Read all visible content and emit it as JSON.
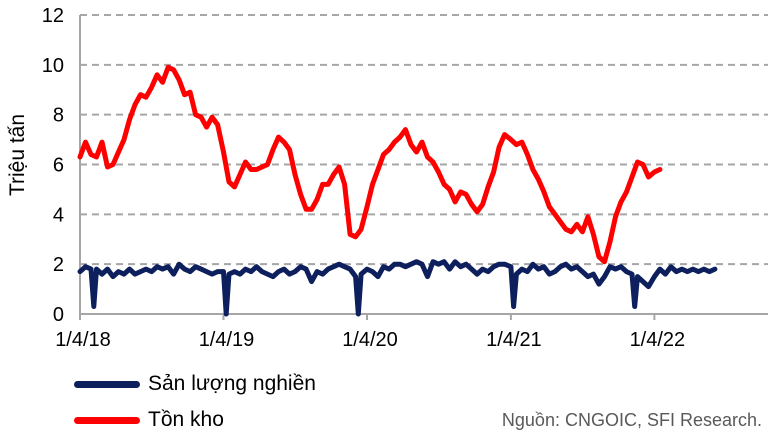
{
  "chart_data": {
    "type": "line",
    "ylabel": "Triệu tấn",
    "xlabel": "",
    "ylim": [
      0,
      12
    ],
    "yticks": [
      0,
      2,
      4,
      6,
      8,
      10,
      12
    ],
    "xticks": [
      "1/4/18",
      "1/4/19",
      "1/4/20",
      "1/4/21",
      "1/4/22"
    ],
    "x_range": [
      "2018-01-04",
      "2022-10-20"
    ],
    "grid": "horizontal dashed",
    "legend_position": "bottom-left",
    "series": [
      {
        "name": "Tồn kho",
        "color": "#ff0000",
        "points": [
          [
            "2018-01-04",
            6.3
          ],
          [
            "2018-01-18",
            6.9
          ],
          [
            "2018-02-01",
            6.4
          ],
          [
            "2018-02-15",
            6.3
          ],
          [
            "2018-03-01",
            6.9
          ],
          [
            "2018-03-15",
            5.9
          ],
          [
            "2018-03-29",
            6.0
          ],
          [
            "2018-04-12",
            6.5
          ],
          [
            "2018-04-26",
            7.0
          ],
          [
            "2018-05-10",
            7.8
          ],
          [
            "2018-05-24",
            8.4
          ],
          [
            "2018-06-07",
            8.8
          ],
          [
            "2018-06-21",
            8.7
          ],
          [
            "2018-07-05",
            9.1
          ],
          [
            "2018-07-19",
            9.6
          ],
          [
            "2018-08-02",
            9.3
          ],
          [
            "2018-08-16",
            9.9
          ],
          [
            "2018-08-30",
            9.8
          ],
          [
            "2018-09-13",
            9.4
          ],
          [
            "2018-09-27",
            8.8
          ],
          [
            "2018-10-11",
            8.9
          ],
          [
            "2018-10-25",
            8.0
          ],
          [
            "2018-11-08",
            7.9
          ],
          [
            "2018-11-22",
            7.5
          ],
          [
            "2018-12-06",
            7.9
          ],
          [
            "2018-12-20",
            7.6
          ],
          [
            "2019-01-04",
            6.5
          ],
          [
            "2019-01-18",
            5.3
          ],
          [
            "2019-02-01",
            5.1
          ],
          [
            "2019-02-15",
            5.6
          ],
          [
            "2019-03-01",
            6.1
          ],
          [
            "2019-03-15",
            5.8
          ],
          [
            "2019-03-29",
            5.8
          ],
          [
            "2019-04-12",
            5.9
          ],
          [
            "2019-04-26",
            6.0
          ],
          [
            "2019-05-10",
            6.6
          ],
          [
            "2019-05-24",
            7.1
          ],
          [
            "2019-06-07",
            6.9
          ],
          [
            "2019-06-21",
            6.6
          ],
          [
            "2019-07-05",
            5.6
          ],
          [
            "2019-07-19",
            4.8
          ],
          [
            "2019-08-02",
            4.2
          ],
          [
            "2019-08-16",
            4.2
          ],
          [
            "2019-08-30",
            4.6
          ],
          [
            "2019-09-13",
            5.2
          ],
          [
            "2019-09-27",
            5.2
          ],
          [
            "2019-10-11",
            5.6
          ],
          [
            "2019-10-25",
            5.9
          ],
          [
            "2019-11-08",
            5.2
          ],
          [
            "2019-11-22",
            3.2
          ],
          [
            "2019-12-06",
            3.1
          ],
          [
            "2019-12-20",
            3.4
          ],
          [
            "2020-01-04",
            4.3
          ],
          [
            "2020-01-18",
            5.2
          ],
          [
            "2020-02-01",
            5.8
          ],
          [
            "2020-02-15",
            6.4
          ],
          [
            "2020-02-29",
            6.6
          ],
          [
            "2020-03-14",
            6.9
          ],
          [
            "2020-03-28",
            7.1
          ],
          [
            "2020-04-11",
            7.4
          ],
          [
            "2020-04-25",
            6.8
          ],
          [
            "2020-05-09",
            6.5
          ],
          [
            "2020-05-23",
            6.9
          ],
          [
            "2020-06-06",
            6.3
          ],
          [
            "2020-06-20",
            6.1
          ],
          [
            "2020-07-04",
            5.7
          ],
          [
            "2020-07-18",
            5.2
          ],
          [
            "2020-08-01",
            5.0
          ],
          [
            "2020-08-15",
            4.5
          ],
          [
            "2020-08-29",
            4.9
          ],
          [
            "2020-09-12",
            4.8
          ],
          [
            "2020-09-26",
            4.4
          ],
          [
            "2020-10-10",
            4.1
          ],
          [
            "2020-10-24",
            4.4
          ],
          [
            "2020-11-07",
            5.1
          ],
          [
            "2020-11-21",
            5.7
          ],
          [
            "2020-12-05",
            6.7
          ],
          [
            "2020-12-19",
            7.2
          ],
          [
            "2021-01-04",
            7.0
          ],
          [
            "2021-01-18",
            6.8
          ],
          [
            "2021-02-01",
            6.9
          ],
          [
            "2021-02-15",
            6.4
          ],
          [
            "2021-03-01",
            5.8
          ],
          [
            "2021-03-15",
            5.4
          ],
          [
            "2021-03-29",
            4.9
          ],
          [
            "2021-04-12",
            4.3
          ],
          [
            "2021-04-26",
            4.0
          ],
          [
            "2021-05-10",
            3.7
          ],
          [
            "2021-05-24",
            3.4
          ],
          [
            "2021-06-07",
            3.3
          ],
          [
            "2021-06-21",
            3.6
          ],
          [
            "2021-07-05",
            3.3
          ],
          [
            "2021-07-19",
            3.9
          ],
          [
            "2021-08-02",
            3.2
          ],
          [
            "2021-08-16",
            2.3
          ],
          [
            "2021-08-30",
            2.1
          ],
          [
            "2021-09-13",
            2.9
          ],
          [
            "2021-09-27",
            3.9
          ],
          [
            "2021-10-11",
            4.5
          ],
          [
            "2021-10-25",
            4.9
          ],
          [
            "2021-11-08",
            5.5
          ],
          [
            "2021-11-22",
            6.1
          ],
          [
            "2021-12-06",
            6.0
          ],
          [
            "2021-12-20",
            5.5
          ],
          [
            "2022-01-04",
            5.7
          ],
          [
            "2022-01-18",
            5.8
          ]
        ]
      },
      {
        "name": "Sản lượng nghiền",
        "color": "#0d1f5c",
        "points": [
          [
            "2018-01-04",
            1.7
          ],
          [
            "2018-01-18",
            1.9
          ],
          [
            "2018-02-01",
            1.8
          ],
          [
            "2018-02-08",
            0.3
          ],
          [
            "2018-02-15",
            1.8
          ],
          [
            "2018-03-01",
            1.6
          ],
          [
            "2018-03-15",
            1.8
          ],
          [
            "2018-03-29",
            1.5
          ],
          [
            "2018-04-12",
            1.7
          ],
          [
            "2018-04-26",
            1.6
          ],
          [
            "2018-05-10",
            1.8
          ],
          [
            "2018-05-24",
            1.6
          ],
          [
            "2018-06-07",
            1.7
          ],
          [
            "2018-06-21",
            1.8
          ],
          [
            "2018-07-05",
            1.7
          ],
          [
            "2018-07-19",
            1.9
          ],
          [
            "2018-08-02",
            1.8
          ],
          [
            "2018-08-16",
            1.9
          ],
          [
            "2018-08-30",
            1.6
          ],
          [
            "2018-09-13",
            2.0
          ],
          [
            "2018-09-27",
            1.8
          ],
          [
            "2018-10-11",
            1.7
          ],
          [
            "2018-10-25",
            1.9
          ],
          [
            "2018-11-08",
            1.8
          ],
          [
            "2018-11-22",
            1.7
          ],
          [
            "2018-12-06",
            1.6
          ],
          [
            "2018-12-20",
            1.7
          ],
          [
            "2019-01-04",
            1.7
          ],
          [
            "2019-01-11",
            0.0
          ],
          [
            "2019-01-18",
            1.6
          ],
          [
            "2019-02-01",
            1.7
          ],
          [
            "2019-02-15",
            1.6
          ],
          [
            "2019-03-01",
            1.8
          ],
          [
            "2019-03-15",
            1.7
          ],
          [
            "2019-03-29",
            1.9
          ],
          [
            "2019-04-12",
            1.7
          ],
          [
            "2019-04-26",
            1.6
          ],
          [
            "2019-05-10",
            1.5
          ],
          [
            "2019-05-24",
            1.7
          ],
          [
            "2019-06-07",
            1.8
          ],
          [
            "2019-06-21",
            1.6
          ],
          [
            "2019-07-05",
            1.7
          ],
          [
            "2019-07-19",
            1.9
          ],
          [
            "2019-08-02",
            1.8
          ],
          [
            "2019-08-16",
            1.3
          ],
          [
            "2019-08-30",
            1.7
          ],
          [
            "2019-09-13",
            1.6
          ],
          [
            "2019-09-27",
            1.8
          ],
          [
            "2019-10-11",
            1.9
          ],
          [
            "2019-10-25",
            2.0
          ],
          [
            "2019-11-08",
            1.9
          ],
          [
            "2019-11-22",
            1.8
          ],
          [
            "2019-12-06",
            1.5
          ],
          [
            "2019-12-13",
            0.0
          ],
          [
            "2019-12-20",
            1.6
          ],
          [
            "2020-01-04",
            1.8
          ],
          [
            "2020-01-18",
            1.7
          ],
          [
            "2020-02-01",
            1.5
          ],
          [
            "2020-02-15",
            1.9
          ],
          [
            "2020-02-29",
            1.8
          ],
          [
            "2020-03-14",
            2.0
          ],
          [
            "2020-03-28",
            2.0
          ],
          [
            "2020-04-11",
            1.9
          ],
          [
            "2020-04-25",
            2.0
          ],
          [
            "2020-05-09",
            2.1
          ],
          [
            "2020-05-23",
            2.0
          ],
          [
            "2020-06-06",
            1.5
          ],
          [
            "2020-06-20",
            2.1
          ],
          [
            "2020-07-04",
            2.0
          ],
          [
            "2020-07-18",
            2.1
          ],
          [
            "2020-08-01",
            1.8
          ],
          [
            "2020-08-15",
            2.1
          ],
          [
            "2020-08-29",
            1.9
          ],
          [
            "2020-09-12",
            2.0
          ],
          [
            "2020-09-26",
            1.8
          ],
          [
            "2020-10-10",
            1.6
          ],
          [
            "2020-10-24",
            1.8
          ],
          [
            "2020-11-07",
            1.7
          ],
          [
            "2020-11-21",
            1.9
          ],
          [
            "2020-12-05",
            2.0
          ],
          [
            "2020-12-19",
            2.0
          ],
          [
            "2021-01-04",
            1.9
          ],
          [
            "2021-01-11",
            0.3
          ],
          [
            "2021-01-18",
            1.6
          ],
          [
            "2021-02-01",
            1.8
          ],
          [
            "2021-02-15",
            1.7
          ],
          [
            "2021-03-01",
            2.0
          ],
          [
            "2021-03-15",
            1.8
          ],
          [
            "2021-03-29",
            1.9
          ],
          [
            "2021-04-12",
            1.6
          ],
          [
            "2021-04-26",
            1.7
          ],
          [
            "2021-05-10",
            1.9
          ],
          [
            "2021-05-24",
            2.0
          ],
          [
            "2021-06-07",
            1.8
          ],
          [
            "2021-06-21",
            1.9
          ],
          [
            "2021-07-05",
            1.7
          ],
          [
            "2021-07-19",
            1.5
          ],
          [
            "2021-08-02",
            1.6
          ],
          [
            "2021-08-16",
            1.2
          ],
          [
            "2021-08-30",
            1.5
          ],
          [
            "2021-09-13",
            1.9
          ],
          [
            "2021-09-27",
            1.8
          ],
          [
            "2021-10-11",
            1.9
          ],
          [
            "2021-10-25",
            1.7
          ],
          [
            "2021-11-08",
            1.6
          ],
          [
            "2021-11-15",
            0.3
          ],
          [
            "2021-11-22",
            1.5
          ],
          [
            "2021-12-06",
            1.3
          ],
          [
            "2021-12-20",
            1.1
          ],
          [
            "2022-01-04",
            1.5
          ],
          [
            "2022-01-18",
            1.8
          ],
          [
            "2022-02-01",
            1.6
          ],
          [
            "2022-02-15",
            1.9
          ],
          [
            "2022-03-01",
            1.7
          ],
          [
            "2022-03-15",
            1.8
          ],
          [
            "2022-03-29",
            1.7
          ],
          [
            "2022-04-12",
            1.8
          ],
          [
            "2022-04-26",
            1.7
          ],
          [
            "2022-05-10",
            1.8
          ],
          [
            "2022-05-24",
            1.7
          ],
          [
            "2022-06-07",
            1.8
          ]
        ]
      }
    ]
  },
  "legend": [
    {
      "label": "Sản lượng nghiền",
      "color": "#0d1f5c"
    },
    {
      "label": "Tồn kho",
      "color": "#ff0000"
    }
  ],
  "source": "Nguồn: CNGOIC, SFI Research."
}
